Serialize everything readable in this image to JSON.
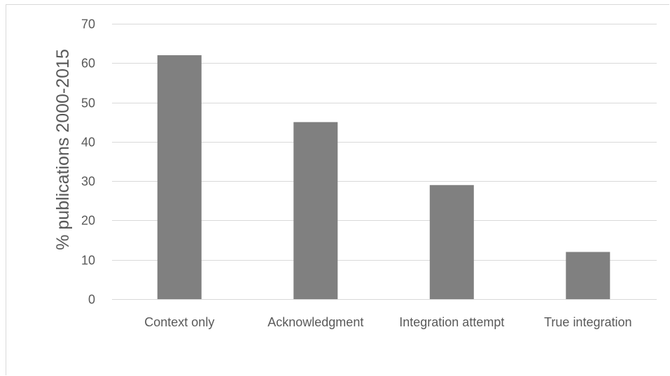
{
  "chart_data": {
    "type": "bar",
    "categories": [
      "Context only",
      "Acknowledgment",
      "Integration attempt",
      "True integration"
    ],
    "values": [
      62,
      45,
      29,
      12
    ],
    "title": "",
    "xlabel": "",
    "ylabel": "% publications 2000-2015",
    "ylim": [
      0,
      70
    ],
    "yticks": [
      "0",
      "10",
      "20",
      "30",
      "40",
      "50",
      "60",
      "70"
    ],
    "grid": "horizontal",
    "bar_color": "#808080",
    "gridline_color": "#d9d9d9",
    "text_color": "#595959"
  }
}
